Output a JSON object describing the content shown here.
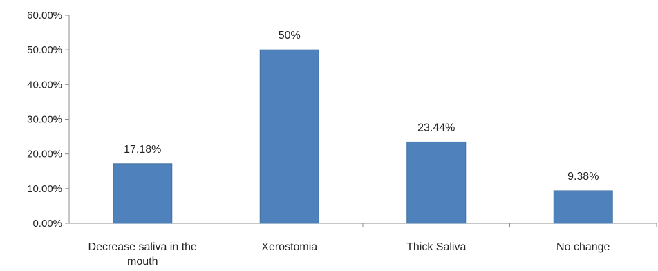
{
  "chart_data": {
    "type": "bar",
    "categories": [
      "Decrease saliva in the mouth",
      "Xerostomia",
      "Thick Saliva",
      "No change"
    ],
    "category_label_lines": [
      [
        "Decrease saliva in the",
        "mouth"
      ],
      [
        "Xerostomia"
      ],
      [
        "Thick Saliva"
      ],
      [
        "No change"
      ]
    ],
    "values": [
      17.18,
      50,
      23.44,
      9.38
    ],
    "data_labels": [
      "17.18%",
      "50%",
      "23.44%",
      "9.38%"
    ],
    "y_ticks": [
      0,
      10,
      20,
      30,
      40,
      50,
      60
    ],
    "y_tick_labels": [
      "0.00%",
      "10.00%",
      "20.00%",
      "30.00%",
      "40.00%",
      "50.00%",
      "60.00%"
    ],
    "ylim": [
      0,
      60
    ],
    "title": "",
    "xlabel": "",
    "ylabel": "",
    "grid": false,
    "legend": "none",
    "bar_color": "#4f81bd",
    "bar_edge_color": "#41719c",
    "axis_color": "#8c8c8c"
  }
}
